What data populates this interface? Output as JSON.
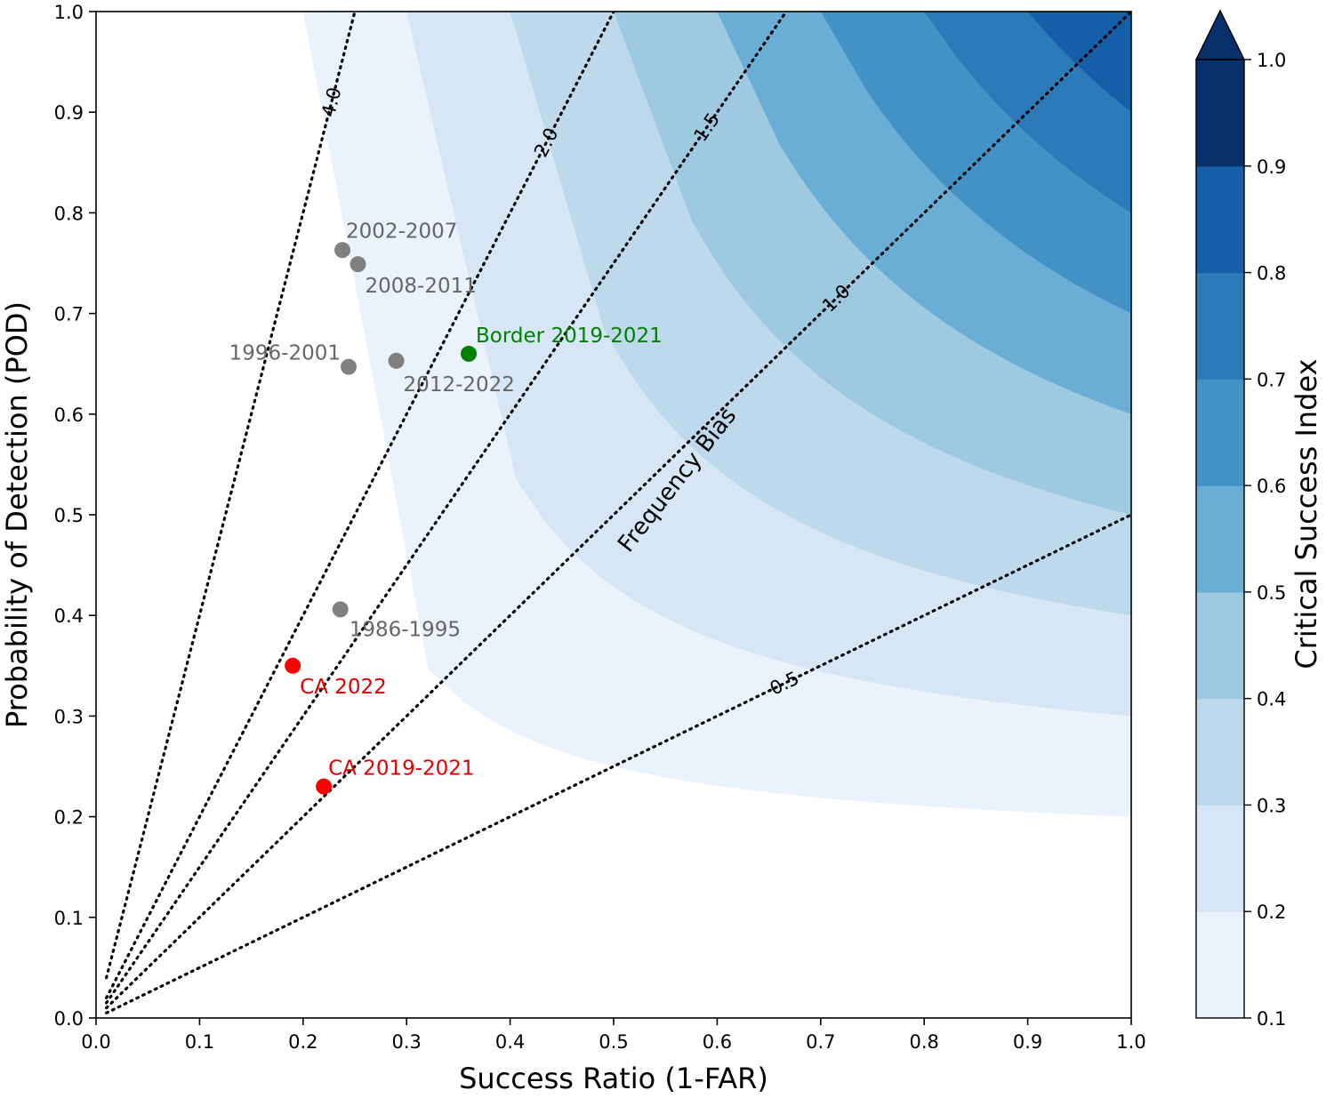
{
  "chart_data": {
    "type": "performance_diagram",
    "xlabel": "Success Ratio (1-FAR)",
    "ylabel": "Probability of Detection (POD)",
    "xlim": [
      0.0,
      1.0
    ],
    "ylim": [
      0.0,
      1.0
    ],
    "x_ticks": [
      "0.0",
      "0.1",
      "0.2",
      "0.3",
      "0.4",
      "0.5",
      "0.6",
      "0.7",
      "0.8",
      "0.9",
      "1.0"
    ],
    "y_ticks": [
      "0.0",
      "0.1",
      "0.2",
      "0.3",
      "0.4",
      "0.5",
      "0.6",
      "0.7",
      "0.8",
      "0.9",
      "1.0"
    ],
    "csi_contours": {
      "levels": [
        0.1,
        0.2,
        0.3,
        0.4,
        0.5,
        0.6,
        0.7,
        0.8,
        0.9,
        1.0
      ],
      "colors": [
        "#ffffff",
        "#eaf2fb",
        "#d6e6f4",
        "#bed8ec",
        "#9ecae1",
        "#6aaed6",
        "#4292c6",
        "#2c7bb8",
        "#145fa8",
        "#08306b"
      ],
      "extend": "max"
    },
    "colorbar": {
      "label": "Critical Success Index",
      "tick_labels": [
        "0.1",
        "0.2",
        "0.3",
        "0.4",
        "0.5",
        "0.6",
        "0.7",
        "0.8",
        "0.9",
        "1.0"
      ]
    },
    "frequency_bias": {
      "title": "Frequency Bias",
      "lines": [
        {
          "bias": 4.0,
          "label": "4.0"
        },
        {
          "bias": 2.0,
          "label": "2.0"
        },
        {
          "bias": 1.5,
          "label": "1.5"
        },
        {
          "bias": 1.0,
          "label": "1.0"
        },
        {
          "bias": 0.5,
          "label": "0.5"
        }
      ]
    },
    "points": [
      {
        "label": "2002-2007",
        "x": 0.238,
        "y": 0.763,
        "color": "#808080",
        "text_color": "#666666"
      },
      {
        "label": "2008-2011",
        "x": 0.253,
        "y": 0.749,
        "color": "#808080",
        "text_color": "#666666"
      },
      {
        "label": "1996-2001",
        "x": 0.244,
        "y": 0.647,
        "color": "#808080",
        "text_color": "#666666"
      },
      {
        "label": "2012-2022",
        "x": 0.29,
        "y": 0.653,
        "color": "#808080",
        "text_color": "#666666"
      },
      {
        "label": "Border 2019-2021",
        "x": 0.36,
        "y": 0.66,
        "color": "#008000",
        "text_color": "#008000"
      },
      {
        "label": "1986-1995",
        "x": 0.236,
        "y": 0.406,
        "color": "#808080",
        "text_color": "#666666"
      },
      {
        "label": "CA 2022",
        "x": 0.19,
        "y": 0.35,
        "color": "#ff0000",
        "text_color": "#e00000"
      },
      {
        "label": "CA 2019-2021",
        "x": 0.22,
        "y": 0.23,
        "color": "#ff0000",
        "text_color": "#e00000"
      }
    ]
  }
}
